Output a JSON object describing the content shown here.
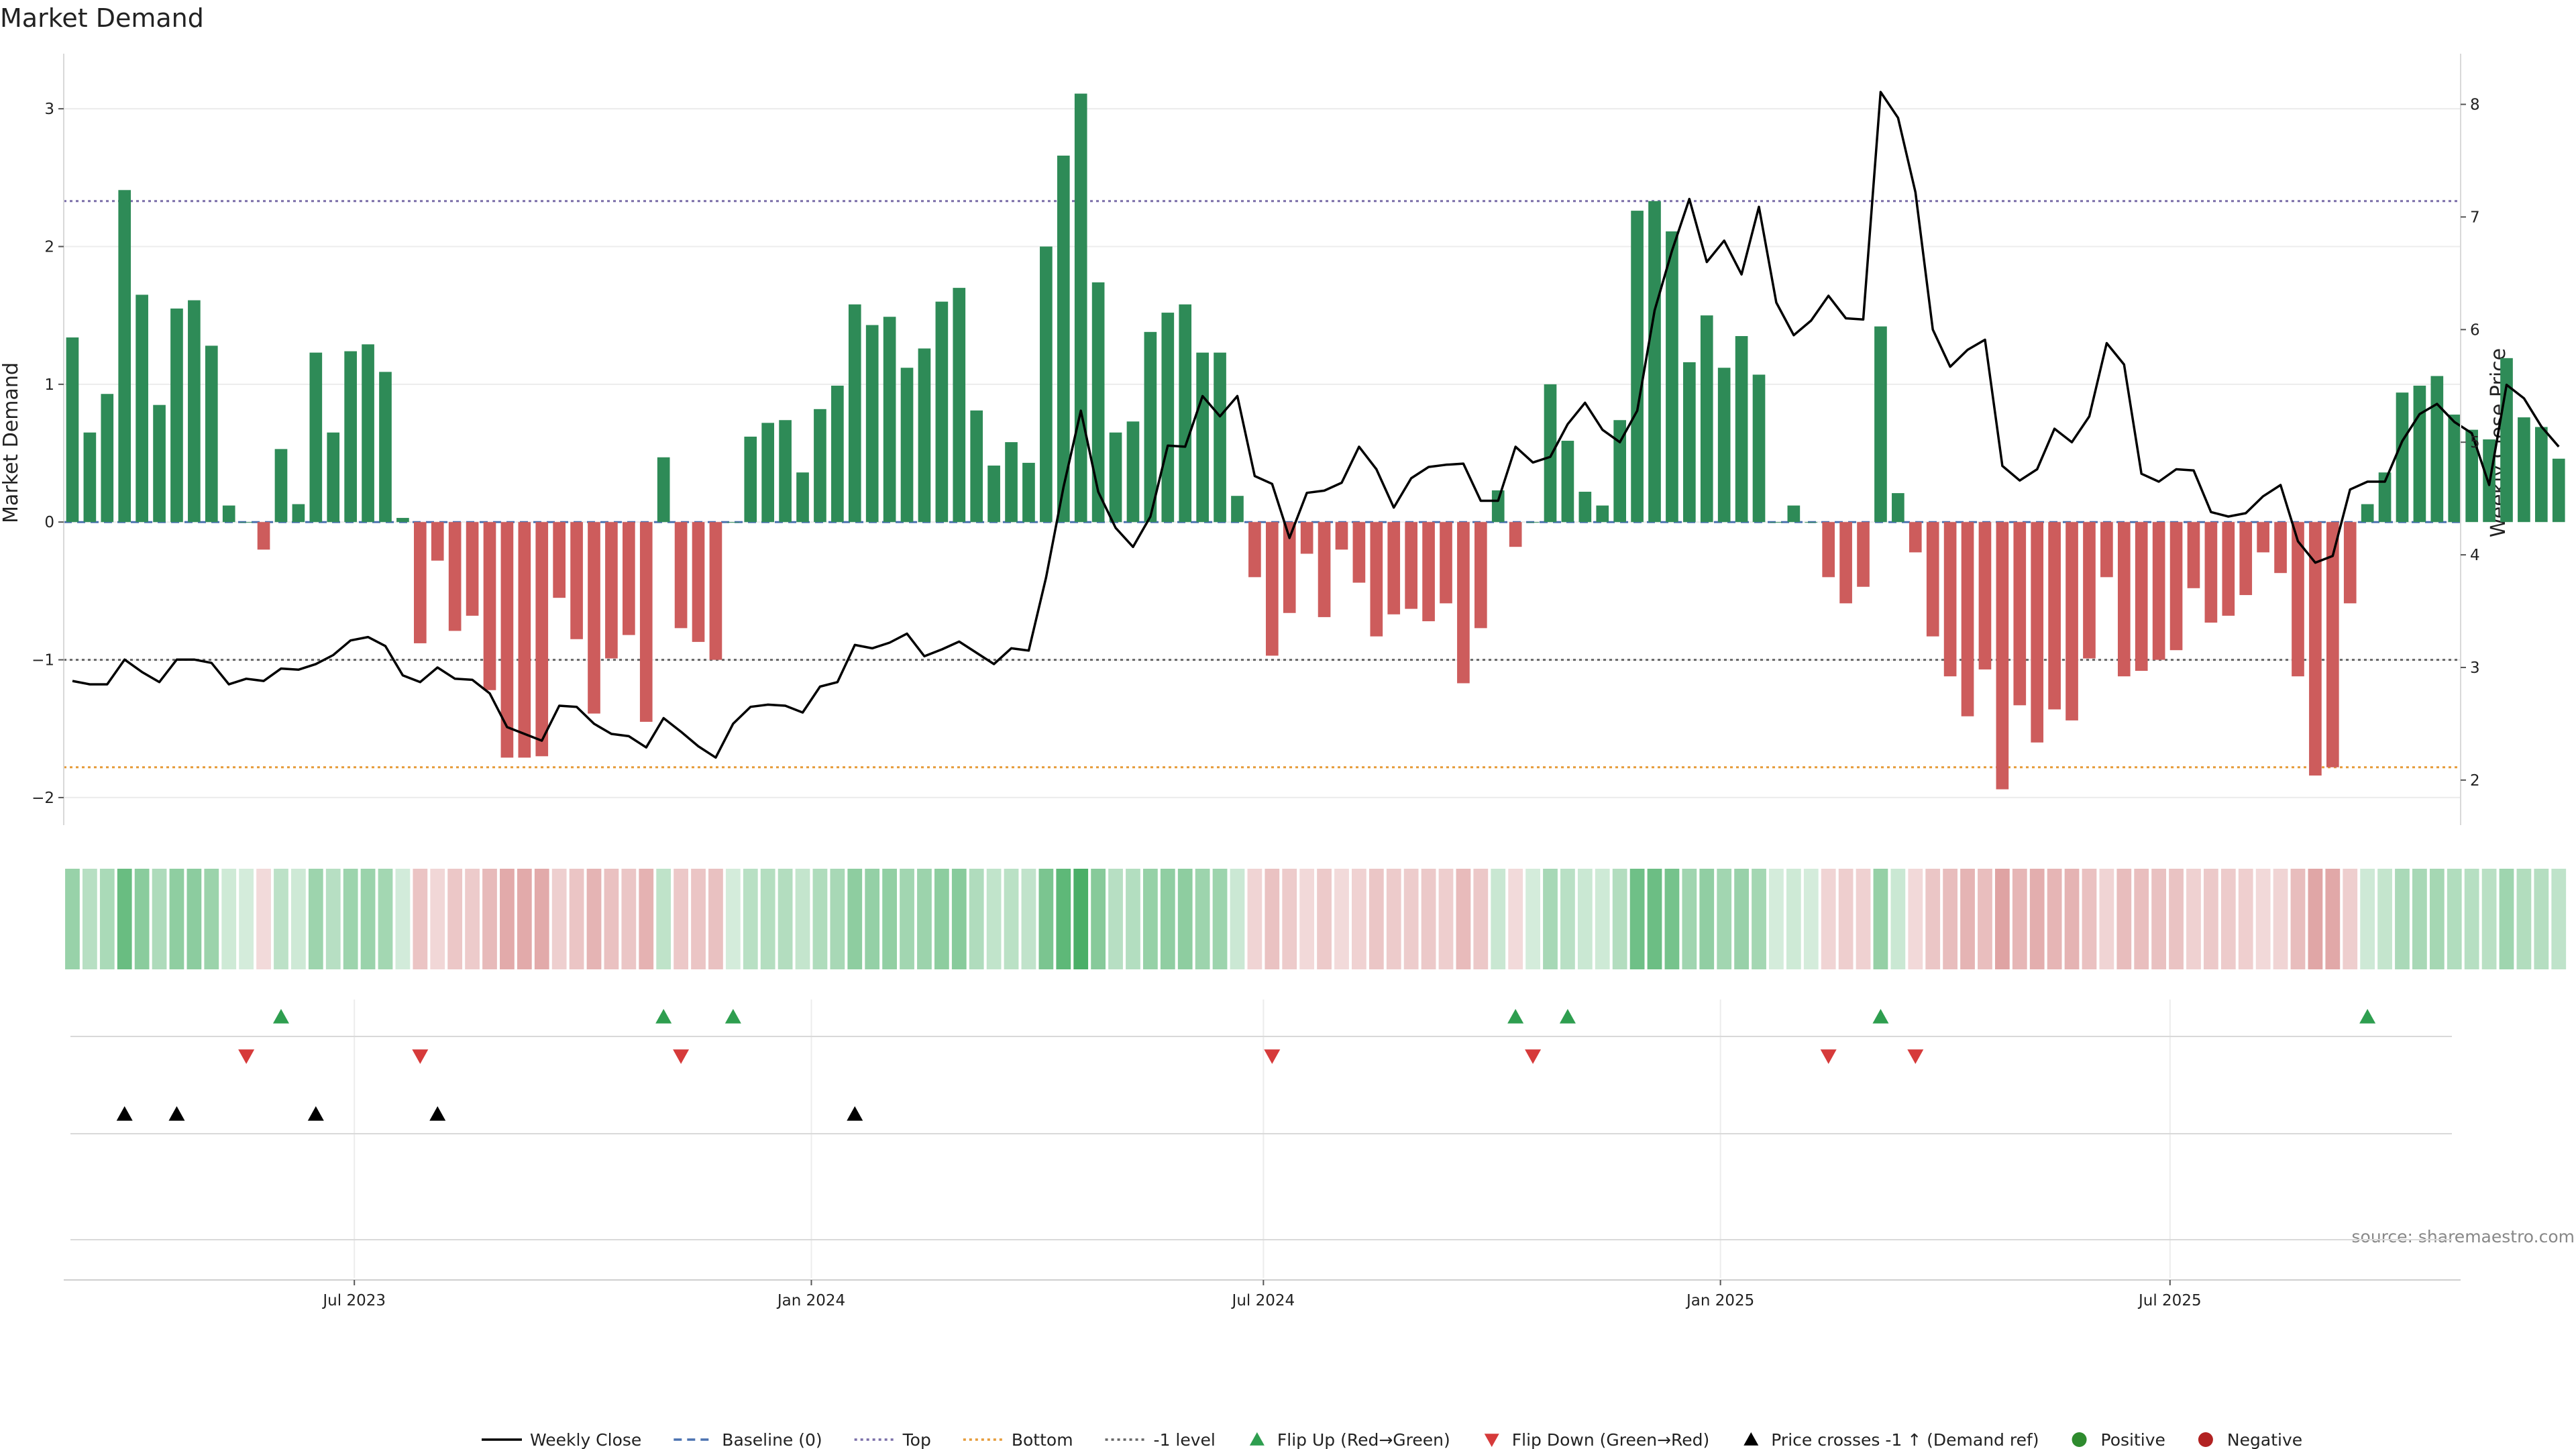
{
  "chart_data": {
    "type": "bar",
    "title": "Market Demand",
    "ylabel_left": "Market Demand",
    "ylabel_right": "Weekly Close Price",
    "source": "source: sharemaestro.com",
    "x_start": "2023-03-06",
    "x_step_days": 7,
    "x_end": "2025-10-26",
    "x_tick_labels": [
      {
        "date": "2023-07-01",
        "label": "Jul 2023"
      },
      {
        "date": "2024-01-01",
        "label": "Jan 2024"
      },
      {
        "date": "2024-07-01",
        "label": "Jul 2024"
      },
      {
        "date": "2025-01-01",
        "label": "Jan 2025"
      },
      {
        "date": "2025-07-01",
        "label": "Jul 2025"
      }
    ],
    "ylim_left": [
      -2.2,
      3.4
    ],
    "yticks_left": [
      -2,
      -1,
      0,
      1,
      2,
      3
    ],
    "ylim_right": [
      1.6,
      8.45
    ],
    "yticks_right": [
      2,
      3,
      4,
      5,
      6,
      7,
      8
    ],
    "reference_lines": [
      {
        "name": "Baseline (0)",
        "value": 0,
        "color": "#4c72b0",
        "style": "dashed"
      },
      {
        "name": "Top",
        "value": 2.33,
        "color": "#7a6ea8",
        "style": "dotted"
      },
      {
        "name": "Bottom",
        "value": -1.78,
        "color": "#e69b3a",
        "style": "dotted"
      },
      {
        "name": "-1 level",
        "value": -1.0,
        "color": "#666666",
        "style": "dotted"
      }
    ],
    "demand": [
      1.34,
      0.65,
      0.93,
      2.41,
      1.65,
      0.85,
      1.55,
      1.61,
      1.28,
      0.12,
      0.0,
      -0.2,
      0.53,
      0.13,
      1.23,
      0.65,
      1.24,
      1.29,
      1.09,
      0.03,
      -0.88,
      -0.28,
      -0.79,
      -0.68,
      -1.22,
      -1.71,
      -1.71,
      -1.7,
      -0.55,
      -0.85,
      -1.39,
      -0.99,
      -0.82,
      -1.45,
      0.47,
      -0.77,
      -0.87,
      -1.0,
      0.0,
      0.62,
      0.72,
      0.74,
      0.36,
      0.82,
      0.99,
      1.58,
      1.43,
      1.49,
      1.12,
      1.26,
      1.6,
      1.7,
      0.81,
      0.41,
      0.58,
      0.43,
      2.0,
      2.66,
      3.11,
      1.74,
      0.65,
      0.73,
      1.38,
      1.52,
      1.58,
      1.23,
      1.23,
      0.19,
      -0.4,
      -0.97,
      -0.66,
      -0.23,
      -0.69,
      -0.2,
      -0.44,
      -0.83,
      -0.67,
      -0.63,
      -0.72,
      -0.59,
      -1.17,
      -0.77,
      0.23,
      -0.18,
      0.0,
      1.0,
      0.59,
      0.22,
      0.12,
      0.74,
      2.26,
      2.33,
      2.11,
      1.16,
      1.5,
      1.12,
      1.35,
      1.07,
      0.0,
      0.12,
      0.0,
      -0.4,
      -0.59,
      -0.47,
      1.42,
      0.21,
      -0.22,
      -0.83,
      -1.12,
      -1.41,
      -1.07,
      -1.94,
      -1.33,
      -1.6,
      -1.36,
      -1.44,
      -0.99,
      -0.4,
      -1.12,
      -1.08,
      -1.0,
      -0.93,
      -0.48,
      -0.73,
      -0.68,
      -0.53,
      -0.22,
      -0.37,
      -1.12,
      -1.84,
      -1.78,
      -0.59,
      0.13,
      0.36,
      0.94,
      0.99,
      1.06,
      0.78,
      0.67,
      0.6,
      1.19,
      0.76,
      0.69,
      0.46
    ],
    "weekly_close": [
      2.88,
      2.85,
      2.85,
      3.07,
      2.96,
      2.87,
      3.07,
      3.07,
      3.04,
      2.85,
      2.9,
      2.88,
      2.99,
      2.98,
      3.03,
      3.11,
      3.24,
      3.27,
      3.19,
      2.93,
      2.87,
      3.0,
      2.9,
      2.89,
      2.77,
      2.47,
      2.41,
      2.35,
      2.66,
      2.65,
      2.5,
      2.41,
      2.39,
      2.29,
      2.55,
      2.43,
      2.3,
      2.2,
      2.5,
      2.65,
      2.67,
      2.66,
      2.6,
      2.83,
      2.87,
      3.2,
      3.17,
      3.22,
      3.3,
      3.1,
      3.16,
      3.23,
      3.13,
      3.03,
      3.17,
      3.15,
      3.8,
      4.6,
      5.28,
      4.56,
      4.24,
      4.07,
      4.34,
      4.97,
      4.96,
      5.41,
      5.23,
      5.41,
      4.7,
      4.63,
      4.15,
      4.55,
      4.57,
      4.64,
      4.96,
      4.76,
      4.42,
      4.68,
      4.78,
      4.8,
      4.81,
      4.48,
      4.48,
      4.96,
      4.82,
      4.87,
      5.16,
      5.35,
      5.11,
      5.0,
      5.28,
      6.17,
      6.7,
      7.16,
      6.6,
      6.79,
      6.49,
      7.09,
      6.24,
      5.95,
      6.08,
      6.3,
      6.1,
      6.09,
      8.11,
      7.88,
      7.22,
      6.0,
      5.67,
      5.82,
      5.91,
      4.79,
      4.66,
      4.76,
      5.12,
      5.0,
      5.23,
      5.88,
      5.69,
      4.72,
      4.65,
      4.76,
      4.75,
      4.38,
      4.34,
      4.37,
      4.52,
      4.62,
      4.12,
      3.93,
      3.99,
      4.58,
      4.65,
      4.65,
      5.01,
      5.25,
      5.34,
      5.18,
      5.08,
      4.62,
      5.51,
      5.39,
      5.14,
      4.96
    ],
    "flip_up_weeks": [
      12,
      34,
      38,
      83,
      86,
      104,
      132
    ],
    "flip_down_weeks": [
      10,
      20,
      35,
      69,
      84,
      101,
      106
    ],
    "price_cross_weeks": [
      3,
      6,
      14,
      21,
      45
    ],
    "colors": {
      "positive": "#2e8b57",
      "negative": "#cd5c5c",
      "close_line": "#000000",
      "flip_up": "#2e9e4f",
      "flip_down": "#d63a3a",
      "price_cross": "#000000",
      "positive_dot": "#2e8b2e",
      "negative_dot": "#b22222"
    },
    "legend": [
      {
        "label": "Weekly Close",
        "kind": "line",
        "color": "#000000",
        "dash": ""
      },
      {
        "label": "Baseline (0)",
        "kind": "line",
        "color": "#4c72b0",
        "dash": "12,8"
      },
      {
        "label": "Top",
        "kind": "line",
        "color": "#7a6ea8",
        "dash": "4,5"
      },
      {
        "label": "Bottom",
        "kind": "line",
        "color": "#e69b3a",
        "dash": "4,5"
      },
      {
        "label": "-1 level",
        "kind": "line",
        "color": "#666666",
        "dash": "4,5"
      },
      {
        "label": "Flip Up (Red→Green)",
        "kind": "tri-up",
        "color": "#2e9e4f"
      },
      {
        "label": "Flip Down (Green→Red)",
        "kind": "tri-down",
        "color": "#d63a3a"
      },
      {
        "label": "Price crosses -1 ↑ (Demand ref)",
        "kind": "tri-up",
        "color": "#000000"
      },
      {
        "label": "Positive",
        "kind": "dot",
        "color": "#2e8b2e"
      },
      {
        "label": "Negative",
        "kind": "dot",
        "color": "#b22222"
      }
    ],
    "legend_placement": "bottom",
    "grid": true
  }
}
